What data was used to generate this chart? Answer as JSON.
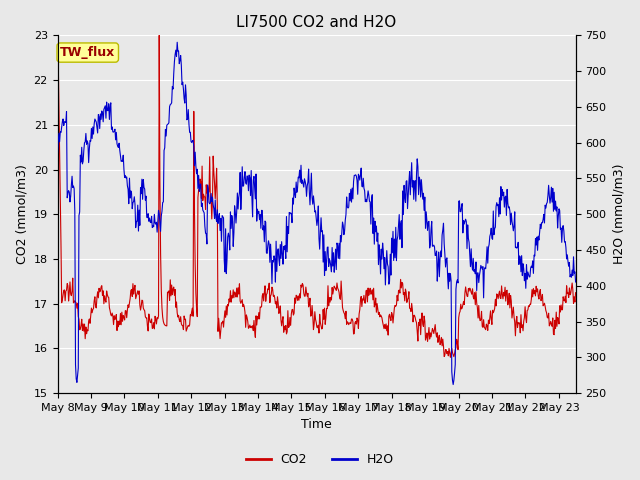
{
  "title": "LI7500 CO2 and H2O",
  "xlabel": "Time",
  "ylabel_left": "CO2 (mmol/m3)",
  "ylabel_right": "H2O (mmol/m3)",
  "xlim": [
    0,
    15.5
  ],
  "ylim_left": [
    15.0,
    23.0
  ],
  "ylim_right": [
    250,
    750
  ],
  "yticks_left": [
    15.0,
    16.0,
    17.0,
    18.0,
    19.0,
    20.0,
    21.0,
    22.0,
    23.0
  ],
  "yticks_right": [
    250,
    300,
    350,
    400,
    450,
    500,
    550,
    600,
    650,
    700,
    750
  ],
  "xtick_labels": [
    "May 8",
    "May 9",
    "May 10",
    "May 11",
    "May 12",
    "May 13",
    "May 14",
    "May 15",
    "May 16",
    "May 17",
    "May 18",
    "May 19",
    "May 20",
    "May 21",
    "May 22",
    "May 23"
  ],
  "co2_color": "#cc0000",
  "h2o_color": "#0000cc",
  "fig_bg_color": "#e8e8e8",
  "plot_bg_color": "#e8e8e8",
  "grid_color": "#ffffff",
  "annotation_text": "TW_flux",
  "annotation_bg": "#ffff99",
  "annotation_border": "#bbbb00",
  "title_fontsize": 11,
  "axis_fontsize": 9,
  "tick_fontsize": 8,
  "legend_fontsize": 9
}
